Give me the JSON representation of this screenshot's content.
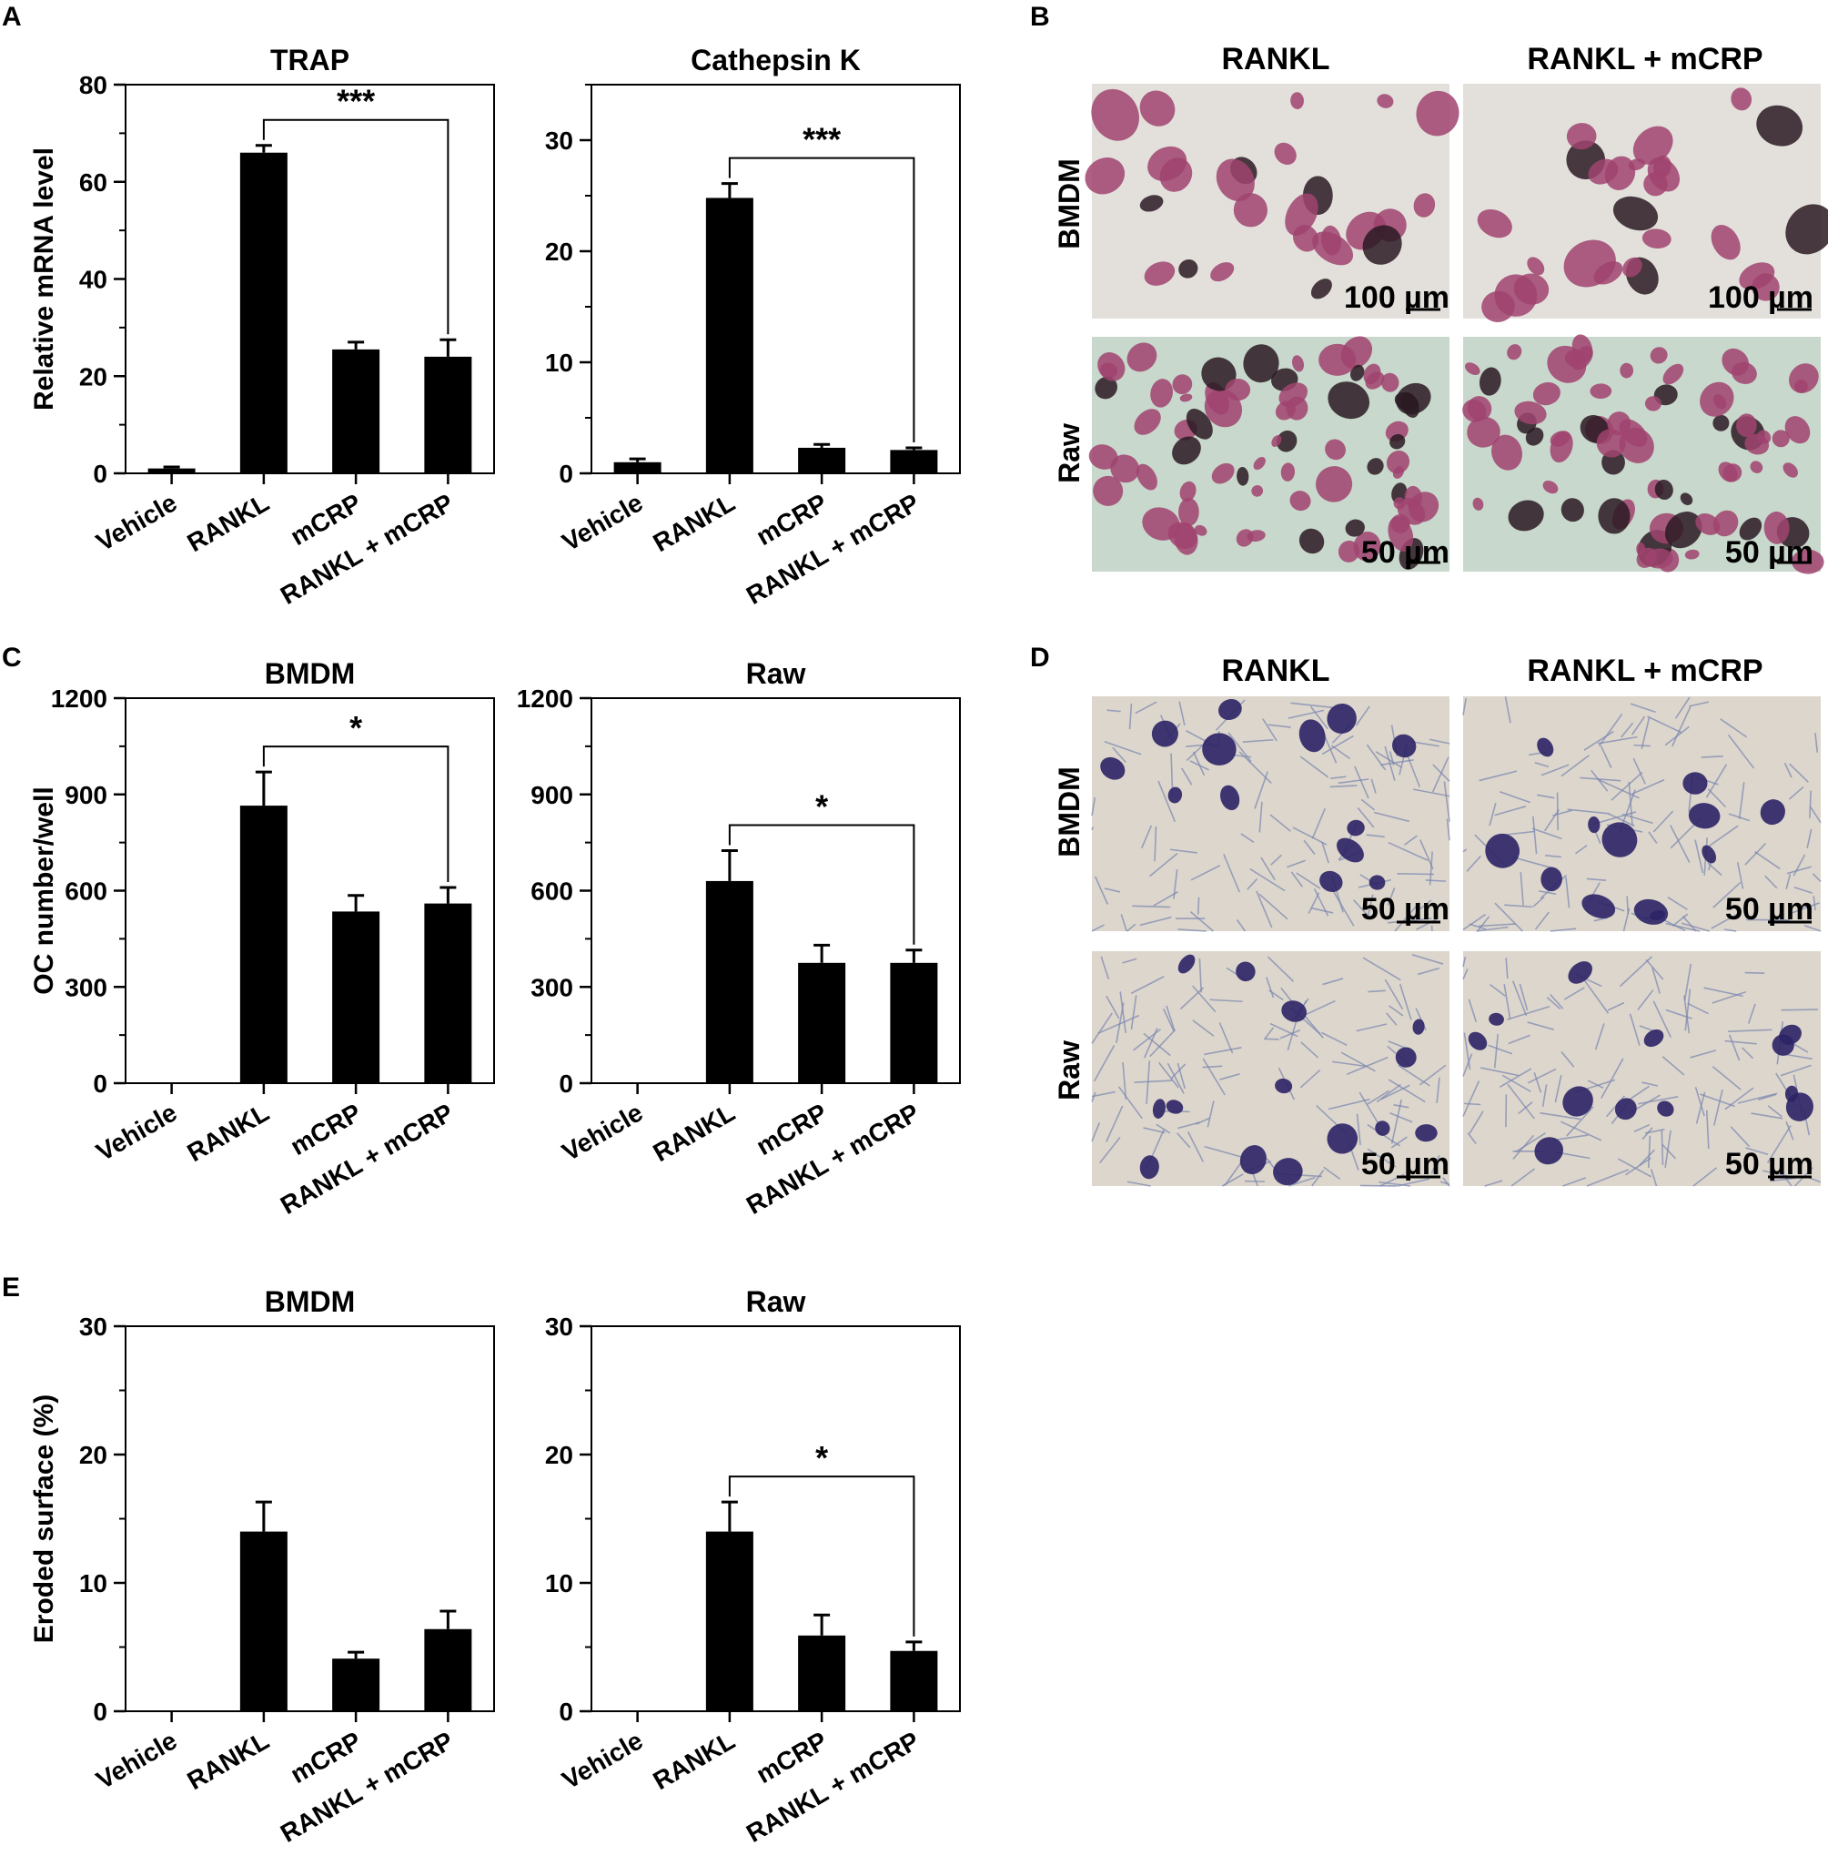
{
  "panel_labels": {
    "A": "A",
    "B": "B",
    "C": "C",
    "D": "D",
    "E": "E"
  },
  "categories": [
    "Vehicle",
    "RANKL",
    "mCRP",
    "RANKL + mCRP"
  ],
  "chart_data": [
    {
      "id": "A-TRAP",
      "type": "bar",
      "title": "TRAP",
      "ylabel": "Relative mRNA level",
      "categories": [
        "Vehicle",
        "RANKL",
        "mCRP",
        "RANKL + mCRP"
      ],
      "values": [
        1,
        66,
        25.5,
        24
      ],
      "errors": [
        0.3,
        1.5,
        1.5,
        3.5
      ],
      "ylim": [
        0,
        80
      ],
      "yticks": [
        0,
        20,
        40,
        60,
        80
      ],
      "minor_step": 10,
      "significance": {
        "from": 1,
        "to": 3,
        "label": "***"
      }
    },
    {
      "id": "A-CathepsinK",
      "type": "bar",
      "title": "Cathepsin K",
      "ylabel": "",
      "categories": [
        "Vehicle",
        "RANKL",
        "mCRP",
        "RANKL + mCRP"
      ],
      "values": [
        1,
        24.8,
        2.3,
        2.1
      ],
      "errors": [
        0.3,
        1.3,
        0.3,
        0.2
      ],
      "ylim": [
        0,
        35
      ],
      "yticks": [
        0,
        10,
        20,
        30
      ],
      "minor_step": 5,
      "significance": {
        "from": 1,
        "to": 3,
        "label": "***"
      }
    },
    {
      "id": "C-BMDM",
      "type": "bar",
      "title": "BMDM",
      "ylabel": "OC number/well",
      "categories": [
        "Vehicle",
        "RANKL",
        "mCRP",
        "RANKL + mCRP"
      ],
      "values": [
        0,
        865,
        535,
        560
      ],
      "errors": [
        0,
        105,
        50,
        50
      ],
      "ylim": [
        0,
        1200
      ],
      "yticks": [
        0,
        300,
        600,
        900,
        1200
      ],
      "minor_step": 150,
      "significance": {
        "from": 1,
        "to": 3,
        "label": "*"
      }
    },
    {
      "id": "C-Raw",
      "type": "bar",
      "title": "Raw",
      "ylabel": "",
      "categories": [
        "Vehicle",
        "RANKL",
        "mCRP",
        "RANKL + mCRP"
      ],
      "values": [
        0,
        630,
        375,
        375
      ],
      "errors": [
        0,
        95,
        55,
        40
      ],
      "ylim": [
        0,
        1200
      ],
      "yticks": [
        0,
        300,
        600,
        900,
        1200
      ],
      "minor_step": 150,
      "significance": {
        "from": 1,
        "to": 3,
        "label": "*"
      }
    },
    {
      "id": "E-BMDM",
      "type": "bar",
      "title": "BMDM",
      "ylabel": "Eroded surface (%)",
      "categories": [
        "Vehicle",
        "RANKL",
        "mCRP",
        "RANKL + mCRP"
      ],
      "values": [
        0,
        14,
        4.1,
        6.4
      ],
      "errors": [
        0,
        2.3,
        0.5,
        1.4
      ],
      "ylim": [
        0,
        30
      ],
      "yticks": [
        0,
        10,
        20,
        30
      ],
      "minor_step": 5,
      "significance": null
    },
    {
      "id": "E-Raw",
      "type": "bar",
      "title": "Raw",
      "ylabel": "",
      "categories": [
        "Vehicle",
        "RANKL",
        "mCRP",
        "RANKL + mCRP"
      ],
      "values": [
        0,
        14,
        5.9,
        4.7
      ],
      "errors": [
        0,
        2.3,
        1.6,
        0.7
      ],
      "ylim": [
        0,
        30
      ],
      "yticks": [
        0,
        10,
        20,
        30
      ],
      "minor_step": 5,
      "significance": {
        "from": 1,
        "to": 3,
        "label": "*"
      }
    }
  ],
  "micrographs": {
    "B": {
      "col_headers": [
        "RANKL",
        "RANKL + mCRP"
      ],
      "row_labels": [
        "BMDM",
        "Raw"
      ],
      "scales": [
        "100 µm",
        "100 µm",
        "50 µm",
        "50 µm"
      ],
      "stain": "TRAP",
      "colors": {
        "bg": "#e3e0dc",
        "bg_raw": "#c9d8cc",
        "cell": "#a0436e",
        "dark": "#2a1a22"
      }
    },
    "D": {
      "col_headers": [
        "RANKL",
        "RANKL + mCRP"
      ],
      "row_labels": [
        "BMDM",
        "Raw"
      ],
      "scales": [
        "50 µm",
        "50 µm",
        "50 µm",
        "50 µm"
      ],
      "stain": "toluidine blue",
      "colors": {
        "bg": "#dcd6cc",
        "fiber": "#7a86b0",
        "cell": "#2c2466"
      }
    }
  }
}
